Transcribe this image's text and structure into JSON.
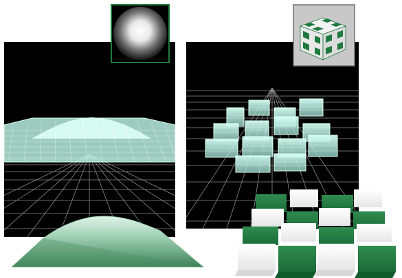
{
  "figure": {
    "background": "#ffffff",
    "viewport_background": "#000000",
    "grid_color": "#8f8f8f",
    "wireframe_color": "#bfeee4",
    "dome_fill_top": "#d9efe3",
    "dome_fill_bottom": "#3f8a5f",
    "checker_green": "#1f7a3f",
    "checker_white": "#f2f2f2"
  },
  "panels": [
    {
      "id": "displacement-map-panel",
      "map_kind": "radial-gradient-sphere",
      "description_icon": "height-map-icon"
    },
    {
      "id": "checker-cube-panel",
      "map_kind": "checkered-cube",
      "description_icon": "checker-cube-icon"
    }
  ]
}
